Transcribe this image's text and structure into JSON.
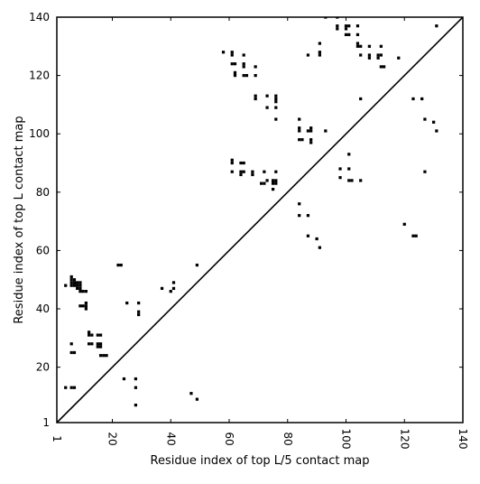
{
  "chart_data": {
    "type": "scatter",
    "xlabel": "Residue index of top L/5 contact map",
    "ylabel": "Residue index of top L contact map",
    "xlim": [
      1,
      140
    ],
    "ylim": [
      1,
      140
    ],
    "x_ticks": [
      1,
      20,
      40,
      60,
      80,
      100,
      120,
      140
    ],
    "y_ticks": [
      1,
      20,
      40,
      60,
      80,
      100,
      120,
      140
    ],
    "diagonal": true,
    "marker": "square",
    "color": "#000000",
    "upper_points": [
      [
        58,
        128
      ],
      [
        61,
        128
      ],
      [
        61,
        127
      ],
      [
        65,
        127
      ],
      [
        61,
        124
      ],
      [
        62,
        124
      ],
      [
        65,
        124
      ],
      [
        65,
        123
      ],
      [
        69,
        123
      ],
      [
        62,
        121
      ],
      [
        62,
        120
      ],
      [
        65,
        120
      ],
      [
        66,
        120
      ],
      [
        69,
        120
      ],
      [
        69,
        113
      ],
      [
        69,
        112
      ],
      [
        73,
        113
      ],
      [
        76,
        113
      ],
      [
        76,
        112
      ],
      [
        76,
        111
      ],
      [
        73,
        109
      ],
      [
        76,
        109
      ],
      [
        76,
        105
      ],
      [
        61,
        91
      ],
      [
        61,
        90
      ],
      [
        64,
        90
      ],
      [
        65,
        90
      ],
      [
        61,
        87
      ],
      [
        64,
        87
      ],
      [
        65,
        87
      ],
      [
        64,
        86
      ],
      [
        68,
        87
      ],
      [
        68,
        86
      ],
      [
        72,
        87
      ],
      [
        76,
        87
      ],
      [
        71,
        83
      ],
      [
        72,
        83
      ],
      [
        73,
        84
      ],
      [
        75,
        84
      ],
      [
        76,
        84
      ],
      [
        75,
        83
      ],
      [
        76,
        83
      ],
      [
        75,
        81
      ],
      [
        87,
        127
      ],
      [
        91,
        131
      ],
      [
        91,
        128
      ],
      [
        91,
        127
      ],
      [
        93,
        140
      ],
      [
        97,
        140
      ],
      [
        97,
        137
      ],
      [
        97,
        136
      ],
      [
        100,
        137
      ],
      [
        101,
        137
      ],
      [
        100,
        136
      ],
      [
        100,
        134
      ],
      [
        101,
        134
      ],
      [
        104,
        137
      ],
      [
        104,
        134
      ],
      [
        104,
        131
      ],
      [
        104,
        130
      ],
      [
        105,
        130
      ],
      [
        108,
        130
      ],
      [
        112,
        130
      ],
      [
        105,
        127
      ],
      [
        108,
        127
      ],
      [
        108,
        126
      ],
      [
        111,
        127
      ],
      [
        112,
        127
      ],
      [
        111,
        126
      ],
      [
        112,
        123
      ],
      [
        113,
        123
      ],
      [
        118,
        126
      ],
      [
        131,
        137
      ],
      [
        105,
        112
      ],
      [
        84,
        105
      ],
      [
        84,
        102
      ],
      [
        84,
        101
      ],
      [
        87,
        101
      ],
      [
        88,
        101
      ],
      [
        88,
        102
      ],
      [
        93,
        101
      ],
      [
        84,
        98
      ],
      [
        85,
        98
      ],
      [
        88,
        98
      ],
      [
        88,
        97
      ],
      [
        101,
        93
      ],
      [
        98,
        88
      ],
      [
        101,
        88
      ],
      [
        98,
        85
      ],
      [
        101,
        84
      ],
      [
        102,
        84
      ],
      [
        105,
        84
      ],
      [
        123,
        112
      ],
      [
        126,
        112
      ],
      [
        127,
        105
      ],
      [
        130,
        104
      ],
      [
        131,
        101
      ],
      [
        127,
        87
      ]
    ],
    "lower_points": [
      [
        4,
        48
      ],
      [
        6,
        51
      ],
      [
        6,
        50
      ],
      [
        7,
        50
      ],
      [
        6,
        49
      ],
      [
        7,
        49
      ],
      [
        8,
        49
      ],
      [
        9,
        49
      ],
      [
        6,
        48
      ],
      [
        7,
        48
      ],
      [
        8,
        48
      ],
      [
        9,
        48
      ],
      [
        8,
        47
      ],
      [
        9,
        47
      ],
      [
        9,
        46
      ],
      [
        10,
        46
      ],
      [
        11,
        46
      ],
      [
        9,
        41
      ],
      [
        10,
        41
      ],
      [
        11,
        42
      ],
      [
        11,
        41
      ],
      [
        11,
        40
      ],
      [
        12,
        32
      ],
      [
        12,
        31
      ],
      [
        13,
        31
      ],
      [
        15,
        31
      ],
      [
        16,
        31
      ],
      [
        12,
        28
      ],
      [
        13,
        28
      ],
      [
        15,
        28
      ],
      [
        16,
        28
      ],
      [
        15,
        27
      ],
      [
        16,
        27
      ],
      [
        16,
        24
      ],
      [
        17,
        24
      ],
      [
        18,
        24
      ],
      [
        6,
        28
      ],
      [
        6,
        25
      ],
      [
        7,
        25
      ],
      [
        4,
        13
      ],
      [
        6,
        13
      ],
      [
        7,
        13
      ],
      [
        22,
        55
      ],
      [
        23,
        55
      ],
      [
        25,
        42
      ],
      [
        29,
        42
      ],
      [
        29,
        39
      ],
      [
        29,
        38
      ],
      [
        24,
        16
      ],
      [
        28,
        16
      ],
      [
        28,
        13
      ],
      [
        28,
        7
      ],
      [
        37,
        47
      ],
      [
        40,
        46
      ],
      [
        41,
        47
      ],
      [
        41,
        49
      ],
      [
        47,
        11
      ],
      [
        49,
        9
      ],
      [
        49,
        55
      ],
      [
        84,
        76
      ],
      [
        84,
        72
      ],
      [
        87,
        72
      ],
      [
        87,
        65
      ],
      [
        90,
        64
      ],
      [
        91,
        61
      ],
      [
        120,
        69
      ],
      [
        123,
        65
      ],
      [
        124,
        65
      ]
    ]
  }
}
